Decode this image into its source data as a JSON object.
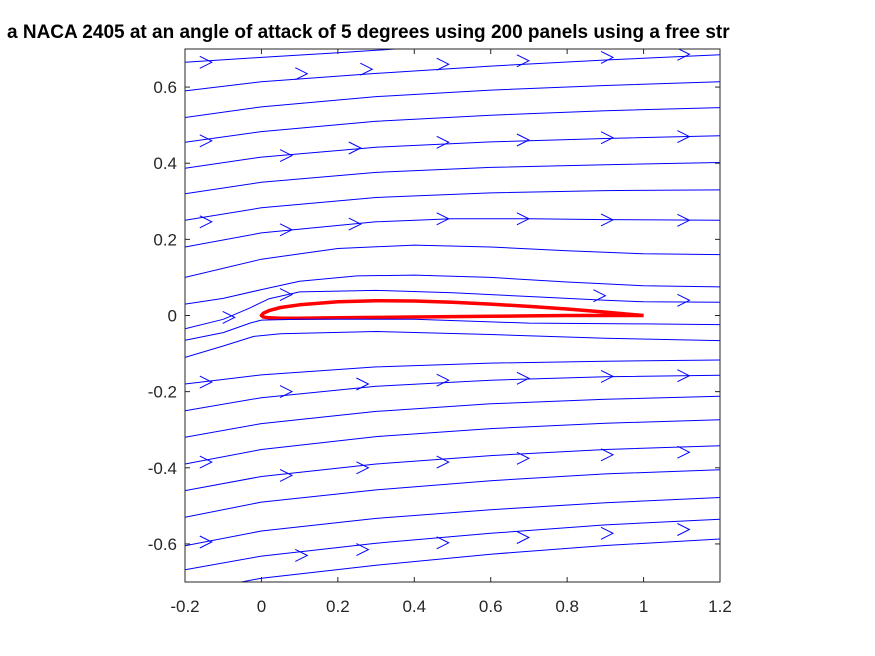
{
  "chart_data": {
    "type": "line",
    "title": "a NACA 2405 at an angle of attack of 5 degrees using 200 panels using a free str",
    "xlabel": "",
    "ylabel": "",
    "xlim": [
      -0.2,
      1.2
    ],
    "ylim": [
      -0.7,
      0.7
    ],
    "xticks": [
      "-0.2",
      "0",
      "0.2",
      "0.4",
      "0.6",
      "0.8",
      "1",
      "1.2"
    ],
    "yticks": [
      "-0.6",
      "-0.4",
      "-0.2",
      "0",
      "0.2",
      "0.4",
      "0.6"
    ],
    "grid": false,
    "series": [
      {
        "color": "#ff0000",
        "points": [
          [
            1.0,
            0.0
          ],
          [
            0.9,
            0.009
          ],
          [
            0.8,
            0.017
          ],
          [
            0.7,
            0.024
          ],
          [
            0.6,
            0.03
          ],
          [
            0.5,
            0.035
          ],
          [
            0.4,
            0.038
          ],
          [
            0.3,
            0.039
          ],
          [
            0.2,
            0.036
          ],
          [
            0.1,
            0.028
          ],
          [
            0.05,
            0.021
          ],
          [
            0.02,
            0.013
          ],
          [
            0.005,
            0.006
          ],
          [
            0.0,
            0.0
          ],
          [
            0.005,
            -0.004
          ],
          [
            0.02,
            -0.006
          ],
          [
            0.05,
            -0.007
          ],
          [
            0.1,
            -0.007
          ],
          [
            0.2,
            -0.006
          ],
          [
            0.3,
            -0.005
          ],
          [
            0.4,
            -0.004
          ],
          [
            0.5,
            -0.003
          ],
          [
            0.6,
            -0.002
          ],
          [
            0.7,
            -0.001
          ],
          [
            0.8,
            0.0
          ],
          [
            0.9,
            0.0
          ],
          [
            1.0,
            0.0
          ]
        ]
      },
      {
        "color": "#0000ff",
        "points": [
          [
            -0.2,
            0.665
          ],
          [
            0.0,
            0.678
          ],
          [
            0.2,
            0.69
          ],
          [
            0.35,
            0.7
          ]
        ]
      },
      {
        "color": "#0000ff",
        "points": [
          [
            -0.2,
            0.59
          ],
          [
            0.0,
            0.614
          ],
          [
            0.3,
            0.636
          ],
          [
            0.6,
            0.655
          ],
          [
            0.9,
            0.671
          ],
          [
            1.2,
            0.685
          ]
        ]
      },
      {
        "color": "#0000ff",
        "points": [
          [
            -0.2,
            0.52
          ],
          [
            0.0,
            0.548
          ],
          [
            0.3,
            0.575
          ],
          [
            0.6,
            0.592
          ],
          [
            0.9,
            0.604
          ],
          [
            1.2,
            0.614
          ]
        ]
      },
      {
        "color": "#0000ff",
        "points": [
          [
            -0.2,
            0.455
          ],
          [
            0.0,
            0.483
          ],
          [
            0.3,
            0.51
          ],
          [
            0.6,
            0.526
          ],
          [
            0.9,
            0.538
          ],
          [
            1.2,
            0.546
          ]
        ]
      },
      {
        "color": "#0000ff",
        "points": [
          [
            -0.2,
            0.387
          ],
          [
            0.0,
            0.416
          ],
          [
            0.3,
            0.442
          ],
          [
            0.6,
            0.456
          ],
          [
            0.9,
            0.465
          ],
          [
            1.2,
            0.472
          ]
        ]
      },
      {
        "color": "#0000ff",
        "points": [
          [
            -0.2,
            0.32
          ],
          [
            0.0,
            0.35
          ],
          [
            0.3,
            0.376
          ],
          [
            0.6,
            0.389
          ],
          [
            0.9,
            0.396
          ],
          [
            1.2,
            0.402
          ]
        ]
      },
      {
        "color": "#0000ff",
        "points": [
          [
            -0.2,
            0.25
          ],
          [
            0.0,
            0.283
          ],
          [
            0.3,
            0.31
          ],
          [
            0.6,
            0.322
          ],
          [
            0.9,
            0.328
          ],
          [
            1.2,
            0.33
          ]
        ]
      },
      {
        "color": "#0000ff",
        "points": [
          [
            -0.2,
            0.18
          ],
          [
            0.0,
            0.217
          ],
          [
            0.3,
            0.246
          ],
          [
            0.5,
            0.254
          ],
          [
            0.7,
            0.254
          ],
          [
            0.9,
            0.252
          ],
          [
            1.2,
            0.25
          ]
        ]
      },
      {
        "color": "#0000ff",
        "points": [
          [
            -0.2,
            0.1
          ],
          [
            0.0,
            0.148
          ],
          [
            0.2,
            0.176
          ],
          [
            0.4,
            0.185
          ],
          [
            0.6,
            0.18
          ],
          [
            0.8,
            0.17
          ],
          [
            1.0,
            0.162
          ],
          [
            1.2,
            0.16
          ]
        ]
      },
      {
        "color": "#0000ff",
        "points": [
          [
            -0.2,
            0.03
          ],
          [
            -0.1,
            0.045
          ],
          [
            0.0,
            0.068
          ],
          [
            0.1,
            0.09
          ],
          [
            0.25,
            0.104
          ],
          [
            0.4,
            0.106
          ],
          [
            0.6,
            0.1
          ],
          [
            0.8,
            0.088
          ],
          [
            1.0,
            0.078
          ],
          [
            1.2,
            0.075
          ]
        ]
      },
      {
        "color": "#0000ff",
        "points": [
          [
            -0.2,
            -0.035
          ],
          [
            -0.1,
            -0.01
          ],
          [
            -0.03,
            0.02
          ],
          [
            0.02,
            0.044
          ],
          [
            0.1,
            0.062
          ],
          [
            0.3,
            0.066
          ],
          [
            0.5,
            0.06
          ],
          [
            0.7,
            0.05
          ],
          [
            0.9,
            0.04
          ],
          [
            1.0,
            0.036
          ],
          [
            1.2,
            0.035
          ]
        ]
      },
      {
        "color": "#0000ff",
        "points": [
          [
            -0.2,
            -0.065
          ],
          [
            -0.1,
            -0.045
          ],
          [
            -0.03,
            -0.02
          ],
          [
            0.0,
            -0.012
          ],
          [
            0.1,
            -0.01
          ],
          [
            0.4,
            -0.01
          ],
          [
            0.7,
            -0.02
          ],
          [
            1.0,
            -0.022
          ],
          [
            1.2,
            -0.024
          ]
        ]
      },
      {
        "color": "#0000ff",
        "points": [
          [
            -0.2,
            -0.11
          ],
          [
            -0.1,
            -0.08
          ],
          [
            -0.02,
            -0.055
          ],
          [
            0.05,
            -0.048
          ],
          [
            0.3,
            -0.042
          ],
          [
            0.6,
            -0.05
          ],
          [
            0.9,
            -0.06
          ],
          [
            1.2,
            -0.066
          ]
        ]
      },
      {
        "color": "#0000ff",
        "points": [
          [
            -0.2,
            -0.18
          ],
          [
            0.0,
            -0.156
          ],
          [
            0.3,
            -0.135
          ],
          [
            0.6,
            -0.125
          ],
          [
            0.9,
            -0.12
          ],
          [
            1.2,
            -0.117
          ]
        ]
      },
      {
        "color": "#0000ff",
        "points": [
          [
            -0.2,
            -0.25
          ],
          [
            0.0,
            -0.216
          ],
          [
            0.3,
            -0.186
          ],
          [
            0.6,
            -0.17
          ],
          [
            0.9,
            -0.161
          ],
          [
            1.2,
            -0.157
          ]
        ]
      },
      {
        "color": "#0000ff",
        "points": [
          [
            -0.2,
            -0.32
          ],
          [
            0.0,
            -0.284
          ],
          [
            0.3,
            -0.252
          ],
          [
            0.6,
            -0.232
          ],
          [
            0.9,
            -0.22
          ],
          [
            1.2,
            -0.212
          ]
        ]
      },
      {
        "color": "#0000ff",
        "points": [
          [
            -0.2,
            -0.39
          ],
          [
            0.0,
            -0.352
          ],
          [
            0.3,
            -0.318
          ],
          [
            0.6,
            -0.297
          ],
          [
            0.9,
            -0.283
          ],
          [
            1.2,
            -0.274
          ]
        ]
      },
      {
        "color": "#0000ff",
        "points": [
          [
            -0.2,
            -0.46
          ],
          [
            0.0,
            -0.423
          ],
          [
            0.3,
            -0.39
          ],
          [
            0.6,
            -0.368
          ],
          [
            0.9,
            -0.352
          ],
          [
            1.2,
            -0.342
          ]
        ]
      },
      {
        "color": "#0000ff",
        "points": [
          [
            -0.2,
            -0.53
          ],
          [
            0.0,
            -0.49
          ],
          [
            0.3,
            -0.458
          ],
          [
            0.6,
            -0.434
          ],
          [
            0.9,
            -0.416
          ],
          [
            1.2,
            -0.405
          ]
        ]
      },
      {
        "color": "#0000ff",
        "points": [
          [
            -0.2,
            -0.605
          ],
          [
            0.0,
            -0.566
          ],
          [
            0.3,
            -0.533
          ],
          [
            0.6,
            -0.51
          ],
          [
            0.9,
            -0.492
          ],
          [
            1.2,
            -0.478
          ]
        ]
      },
      {
        "color": "#0000ff",
        "points": [
          [
            -0.2,
            -0.668
          ],
          [
            0.0,
            -0.632
          ],
          [
            0.3,
            -0.598
          ],
          [
            0.6,
            -0.572
          ],
          [
            0.9,
            -0.55
          ],
          [
            1.2,
            -0.535
          ]
        ]
      },
      {
        "color": "#0000ff",
        "points": [
          [
            -0.2,
            -0.728
          ],
          [
            0.0,
            -0.69
          ],
          [
            0.3,
            -0.656
          ],
          [
            0.6,
            -0.627
          ],
          [
            0.9,
            -0.604
          ],
          [
            1.2,
            -0.587
          ]
        ]
      }
    ],
    "arrows": [
      [
        -0.13,
        0.665
      ],
      [
        0.12,
        0.635
      ],
      [
        0.29,
        0.647
      ],
      [
        0.49,
        0.66
      ],
      [
        0.7,
        0.669
      ],
      [
        0.92,
        0.678
      ],
      [
        1.12,
        0.686
      ],
      [
        -0.13,
        0.459
      ],
      [
        0.08,
        0.42
      ],
      [
        0.26,
        0.44
      ],
      [
        0.49,
        0.455
      ],
      [
        0.7,
        0.461
      ],
      [
        0.92,
        0.467
      ],
      [
        1.12,
        0.47
      ],
      [
        -0.13,
        0.246
      ],
      [
        0.08,
        0.225
      ],
      [
        0.26,
        0.24
      ],
      [
        0.49,
        0.254
      ],
      [
        0.7,
        0.254
      ],
      [
        0.92,
        0.251
      ],
      [
        1.12,
        0.25
      ],
      [
        -0.07,
        -0.005
      ],
      [
        0.08,
        0.055
      ],
      [
        0.9,
        0.052
      ],
      [
        1.12,
        0.04
      ],
      [
        -0.13,
        -0.175
      ],
      [
        0.08,
        -0.2
      ],
      [
        0.28,
        -0.18
      ],
      [
        0.49,
        -0.17
      ],
      [
        0.7,
        -0.165
      ],
      [
        0.92,
        -0.16
      ],
      [
        1.12,
        -0.158
      ],
      [
        -0.13,
        -0.385
      ],
      [
        0.08,
        -0.42
      ],
      [
        0.28,
        -0.4
      ],
      [
        0.49,
        -0.385
      ],
      [
        0.7,
        -0.375
      ],
      [
        0.92,
        -0.366
      ],
      [
        1.12,
        -0.359
      ],
      [
        -0.13,
        -0.595
      ],
      [
        0.12,
        -0.63
      ],
      [
        0.28,
        -0.615
      ],
      [
        0.49,
        -0.597
      ],
      [
        0.7,
        -0.583
      ],
      [
        0.92,
        -0.572
      ],
      [
        1.12,
        -0.562
      ]
    ]
  }
}
